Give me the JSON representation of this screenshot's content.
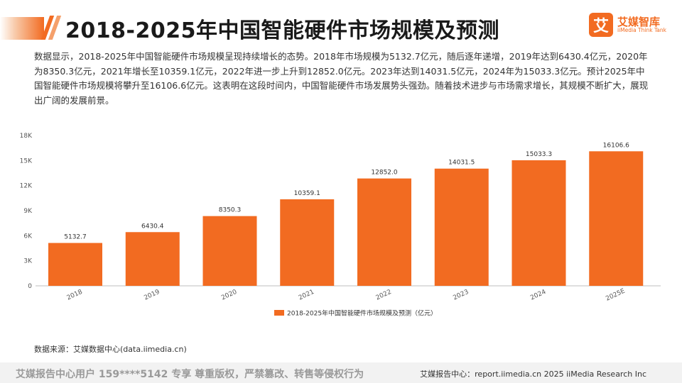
{
  "header": {
    "title": "2018-2025年中国智能硬件市场规模及预测"
  },
  "logo": {
    "mark": "艾",
    "name_cn": "艾媒智库",
    "name_en": "iiMedia Think Tank"
  },
  "summary": "数据显示，2018-2025年中国智能硬件市场规模呈现持续增长的态势。2018年市场规模为5132.7亿元，随后逐年递增，2019年达到6430.4亿元，2020年为8350.3亿元，2021年增长至10359.1亿元，2022年进一步上升到12852.0亿元。2023年达到14031.5亿元，2024年为15033.3亿元。预计2025年中国智能硬件市场规模将攀升至16106.6亿元。这表明在这段时间内，中国智能硬件市场发展势头强劲。随着技术进步与市场需求增长，其规模不断扩大，展现出广阔的发展前景。",
  "source": "数据来源：艾媒数据中心(data.iimedia.cn)",
  "footer": {
    "left": "艾媒报告中心用户 159****5142 专享 尊重版权，严禁篡改、转售等侵权行为",
    "right": "艾媒报告中心：report.iimedia.cn  2025 iiMedia Research Inc"
  },
  "colors": {
    "bar": "#f26b21",
    "accent": "#f26b21",
    "axis_text": "#555555"
  },
  "chart_data": {
    "type": "bar",
    "categories": [
      "2018",
      "2019",
      "2020",
      "2021",
      "2022",
      "2023",
      "2024",
      "2025E"
    ],
    "series": [
      {
        "name": "2018-2025年中国智能硬件市场规模及预测（亿元）",
        "values": [
          5132.7,
          6430.4,
          8350.3,
          10359.1,
          12852.0,
          14031.5,
          15033.3,
          16106.6
        ]
      }
    ],
    "data_labels": [
      "5132.7",
      "6430.4",
      "8350.3",
      "10359.1",
      "12852.0",
      "14031.5",
      "15033.3",
      "16106.6"
    ],
    "yticks": [
      0,
      3000,
      6000,
      9000,
      12000,
      15000,
      18000
    ],
    "ytick_labels": [
      "0",
      "3K",
      "6K",
      "9K",
      "12K",
      "15K",
      "18K"
    ],
    "ylim": [
      0,
      18000
    ],
    "grid": false,
    "legend_position": "bottom-center",
    "xlabel": "",
    "ylabel": ""
  }
}
